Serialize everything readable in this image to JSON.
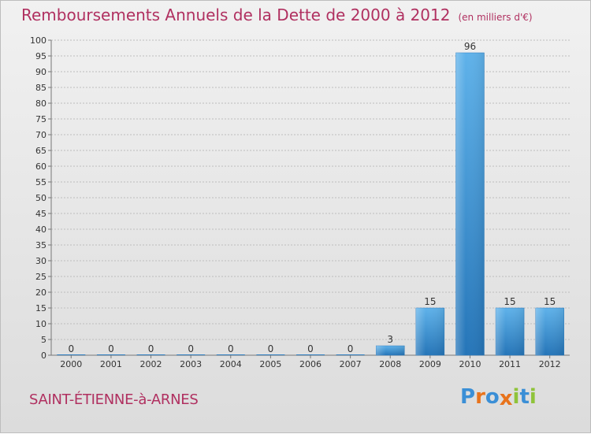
{
  "header": {
    "title": "Remboursements Annuels de la Dette de 2000 à 2012",
    "unit": "(en milliers d'€)"
  },
  "location": "SAINT-ÉTIENNE-à-ARNES",
  "brand": {
    "text": "Proxiti",
    "letter_colors": [
      "#3b8fd6",
      "#e8731c",
      "#3b8fd6",
      "#e8731c",
      "#8fc33a",
      "#3b8fd6",
      "#8fc33a"
    ]
  },
  "colors": {
    "title": "#b03060",
    "axis_labels": "#333333",
    "bar_light": "#5aaee8",
    "bar_dark": "#2a7bbf",
    "grid": "#bdbdbd"
  },
  "chart_data": {
    "type": "bar",
    "categories": [
      "2000",
      "2001",
      "2002",
      "2003",
      "2004",
      "2005",
      "2006",
      "2007",
      "2008",
      "2009",
      "2010",
      "2011",
      "2012"
    ],
    "values": [
      0,
      0,
      0,
      0,
      0,
      0,
      0,
      0,
      3,
      15,
      96,
      15,
      15
    ],
    "title": "Remboursements Annuels de la Dette de 2000 à 2012",
    "ylim": [
      0,
      100
    ],
    "yticks": [
      0,
      5,
      10,
      15,
      20,
      25,
      30,
      35,
      40,
      45,
      50,
      55,
      60,
      65,
      70,
      75,
      80,
      85,
      90,
      95,
      100
    ],
    "grid": true,
    "data_labels": true
  }
}
